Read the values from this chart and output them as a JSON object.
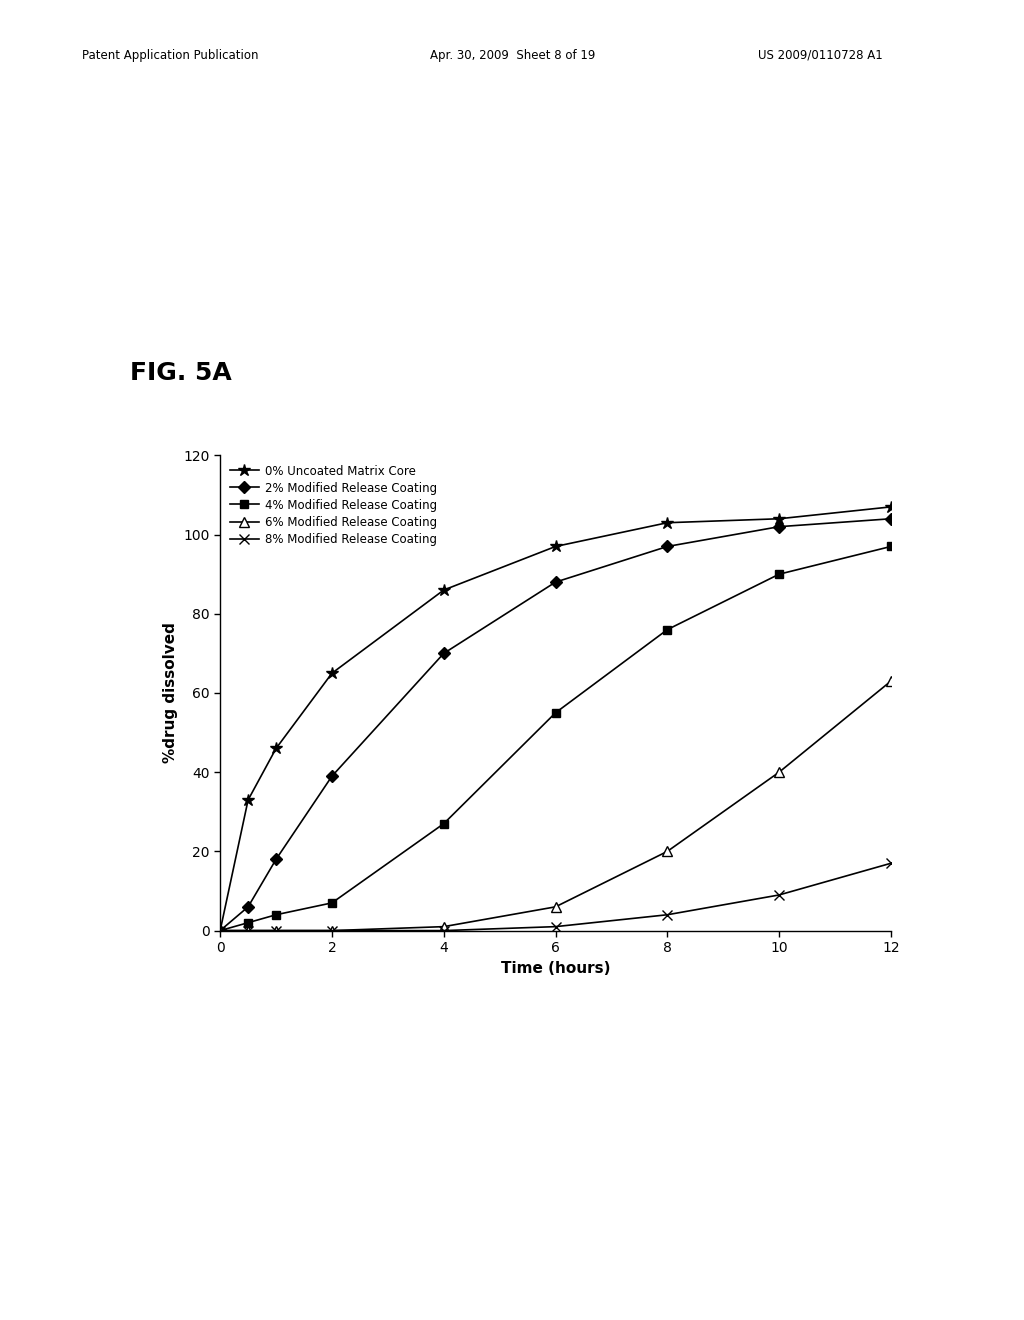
{
  "xlabel": "Time (hours)",
  "ylabel": "%drug dissolved",
  "xlim": [
    0,
    12
  ],
  "ylim": [
    0,
    120
  ],
  "xticks": [
    0,
    2,
    4,
    6,
    8,
    10,
    12
  ],
  "yticks": [
    0,
    20,
    40,
    60,
    80,
    100,
    120
  ],
  "background_color": "#ffffff",
  "series": [
    {
      "label": "0% Uncoated Matrix Core",
      "marker": "*",
      "color": "#000000",
      "linewidth": 1.2,
      "markersize": 9,
      "markerfacecolor": "#000000",
      "x": [
        0,
        0.5,
        1,
        2,
        4,
        6,
        8,
        10,
        12
      ],
      "y": [
        0,
        33,
        46,
        65,
        86,
        97,
        103,
        104,
        107
      ]
    },
    {
      "label": "2% Modified Release Coating",
      "marker": "D",
      "color": "#000000",
      "linewidth": 1.2,
      "markersize": 6,
      "markerfacecolor": "#000000",
      "x": [
        0,
        0.5,
        1,
        2,
        4,
        6,
        8,
        10,
        12
      ],
      "y": [
        0,
        6,
        18,
        39,
        70,
        88,
        97,
        102,
        104
      ]
    },
    {
      "label": "4% Modified Release Coating",
      "marker": "s",
      "color": "#000000",
      "linewidth": 1.2,
      "markersize": 6,
      "markerfacecolor": "#000000",
      "x": [
        0,
        0.5,
        1,
        2,
        4,
        6,
        8,
        10,
        12
      ],
      "y": [
        0,
        2,
        4,
        7,
        27,
        55,
        76,
        90,
        97
      ]
    },
    {
      "label": "6% Modified Release Coating",
      "marker": "^",
      "color": "#000000",
      "linewidth": 1.2,
      "markersize": 7,
      "markerfacecolor": "#ffffff",
      "x": [
        0,
        0.5,
        1,
        2,
        4,
        6,
        8,
        10,
        12
      ],
      "y": [
        0,
        0,
        0,
        0,
        1,
        6,
        20,
        40,
        63
      ]
    },
    {
      "label": "8% Modified Release Coating",
      "marker": "x",
      "color": "#000000",
      "linewidth": 1.2,
      "markersize": 7,
      "markerfacecolor": "#000000",
      "x": [
        0,
        0.5,
        1,
        2,
        4,
        6,
        8,
        10,
        12
      ],
      "y": [
        0,
        0,
        0,
        0,
        0,
        1,
        4,
        9,
        17
      ]
    }
  ],
  "fig_label": "FIG. 5A",
  "header_left": "Patent Application Publication",
  "header_mid": "Apr. 30, 2009  Sheet 8 of 19",
  "header_right": "US 2009/0110728 A1"
}
